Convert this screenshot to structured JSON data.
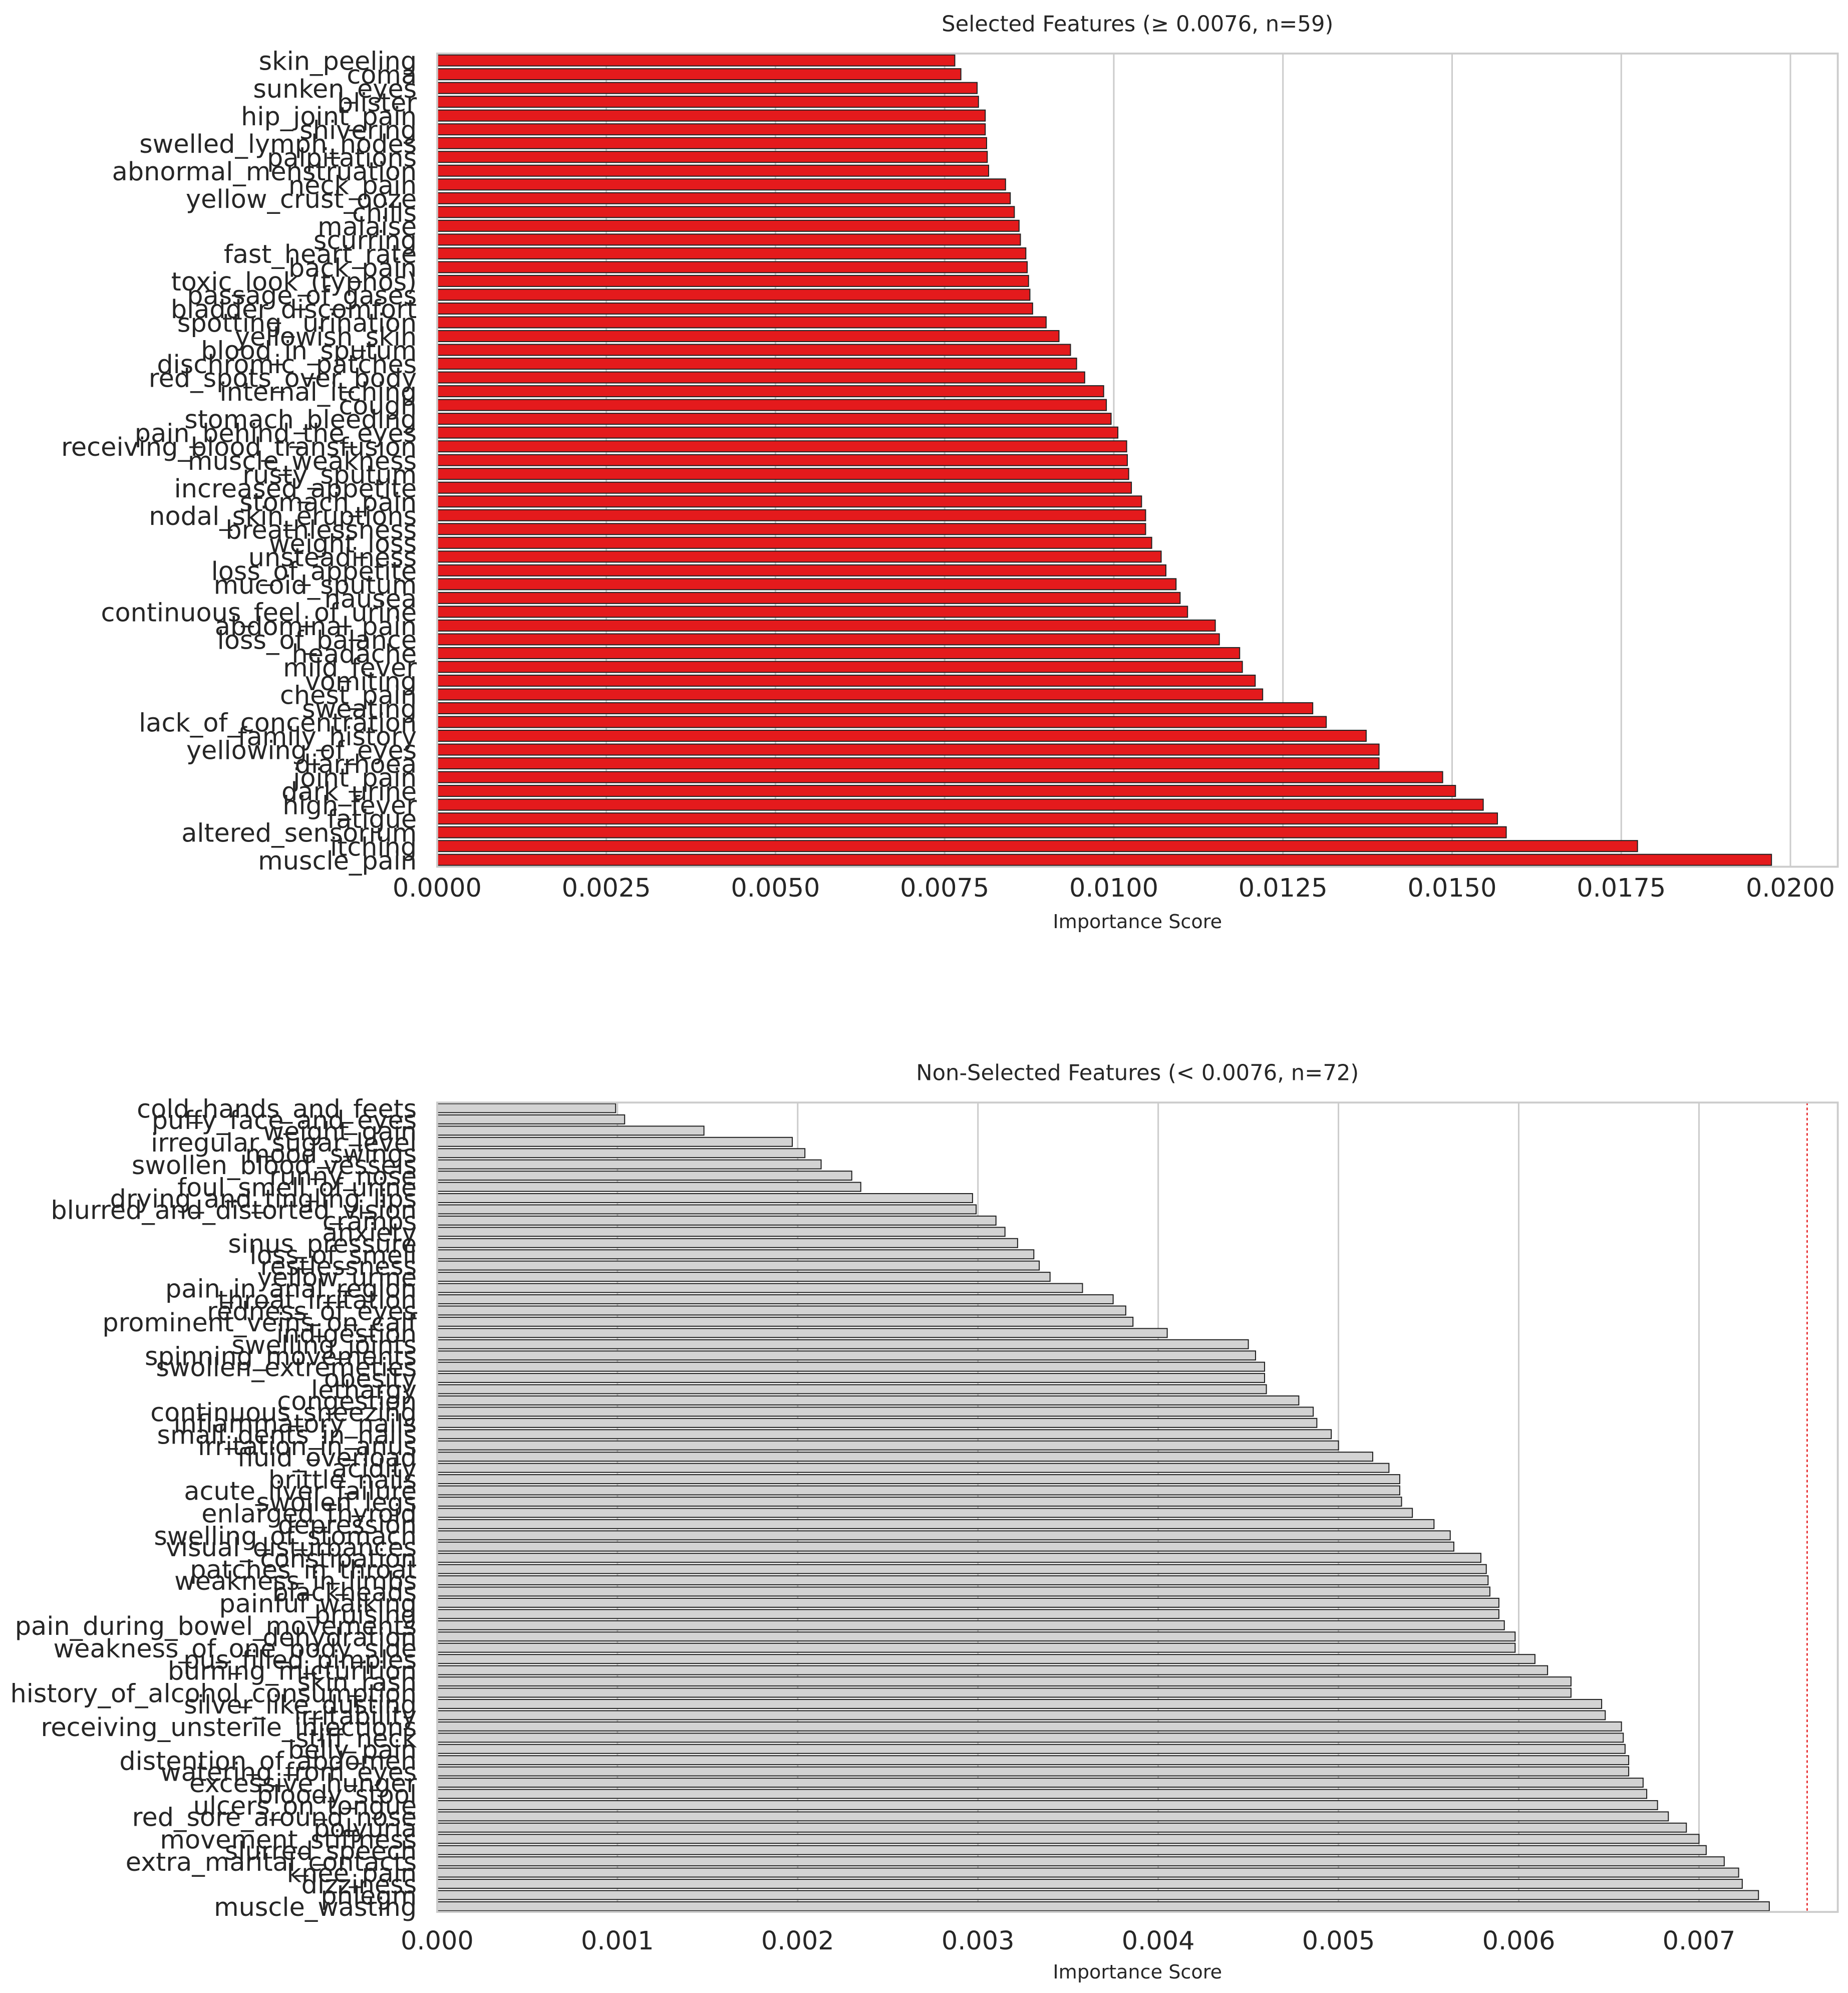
{
  "chart_data": [
    {
      "type": "barh",
      "title": "Selected Features (≥ 0.0076, n=59)",
      "xlabel": "Importance Score",
      "categories": [
        "skin_peeling",
        "coma",
        "sunken_eyes",
        "blister",
        "hip_joint_pain",
        "shivering",
        "swelled_lymph_nodes",
        "palpitations",
        "abnormal_menstruation",
        "neck_pain",
        "yellow_crust_ooze",
        "chills",
        "malaise",
        "scurring",
        "fast_heart_rate",
        "back_pain",
        "toxic_look_(typhos)",
        "passage_of_gases",
        "bladder_discomfort",
        "spotting_ urination",
        "yellowish_skin",
        "blood_in_sputum",
        "dischromic _patches",
        "red_spots_over_body",
        "internal_itching",
        "cough",
        "stomach_bleeding",
        "pain_behind_the_eyes",
        "receiving_blood_transfusion",
        "muscle_weakness",
        "rusty_sputum",
        "increased_appetite",
        "stomach_pain",
        "nodal_skin_eruptions",
        "breathlessness",
        "weight_loss",
        "unsteadiness",
        "loss_of_appetite",
        "mucoid_sputum",
        "nausea",
        "continuous_feel_of_urine",
        "abdominal_pain",
        "loss_of_balance",
        "headache",
        "mild_fever",
        "vomiting",
        "chest_pain",
        "sweating",
        "lack_of_concentration",
        "family_history",
        "yellowing_of_eyes",
        "diarrhoea",
        "joint_pain",
        "dark_urine",
        "high_fever",
        "fatigue",
        "altered_sensorium",
        "itching",
        "muscle_pain"
      ],
      "values": [
        0.00765,
        0.00774,
        0.00798,
        0.008,
        0.0081,
        0.0081,
        0.00812,
        0.00813,
        0.00815,
        0.0084,
        0.00847,
        0.00853,
        0.0086,
        0.00862,
        0.0087,
        0.00872,
        0.00874,
        0.00876,
        0.0088,
        0.009,
        0.00919,
        0.00936,
        0.00945,
        0.00957,
        0.00985,
        0.00989,
        0.00996,
        0.01006,
        0.01019,
        0.0102,
        0.01022,
        0.01026,
        0.01041,
        0.01047,
        0.01047,
        0.01056,
        0.0107,
        0.01077,
        0.01092,
        0.01098,
        0.01109,
        0.0115,
        0.01156,
        0.01186,
        0.0119,
        0.01209,
        0.0122,
        0.01294,
        0.01314,
        0.01373,
        0.01392,
        0.01392,
        0.01486,
        0.01505,
        0.01546,
        0.01567,
        0.0158,
        0.01774,
        0.01972
      ],
      "color": "#e41a1c",
      "edgecolor": "#222222",
      "xlim": [
        0,
        0.0207
      ],
      "xticks": [
        {
          "value": 0,
          "label": "0.0000"
        },
        {
          "value": 0.0025,
          "label": "0.0025"
        },
        {
          "value": 0.005,
          "label": "0.0050"
        },
        {
          "value": 0.0075,
          "label": "0.0075"
        },
        {
          "value": 0.01,
          "label": "0.0100"
        },
        {
          "value": 0.0125,
          "label": "0.0125"
        },
        {
          "value": 0.015,
          "label": "0.0150"
        },
        {
          "value": 0.0175,
          "label": "0.0175"
        },
        {
          "value": 0.02,
          "label": "0.0200"
        }
      ],
      "grid": true
    },
    {
      "type": "barh",
      "title": "Non-Selected Features (< 0.0076, n=72)",
      "xlabel": "Importance Score",
      "categories": [
        "cold_hands_and_feets",
        "puffy_face_and_eyes",
        "weight_gain",
        "irregular_sugar_level",
        "mood_swings",
        "swollen_blood_vessels",
        "runny_nose",
        "foul_smell_of urine",
        "drying_and_tingling_lips",
        "blurred_and_distorted_vision",
        "cramps",
        "anxiety",
        "sinus_pressure",
        "loss_of_smell",
        "restlessness",
        "yellow_urine",
        "pain_in_anal_region",
        "throat_irritation",
        "redness_of_eyes",
        "prominent_veins_on_calf",
        "indigestion",
        "swelling_joints",
        "spinning_movements",
        "swollen_extremeties",
        "obesity",
        "lethargy",
        "congestion",
        "continuous_sneezing",
        "inflammatory_nails",
        "small_dents_in_nails",
        "irritation_in_anus",
        "fluid_overload",
        "acidity",
        "brittle_nails",
        "acute_liver_failure",
        "swollen_legs",
        "enlarged_thyroid",
        "depression",
        "swelling_of_stomach",
        "visual_disturbances",
        "constipation",
        "patches_in_throat",
        "weakness_in_limbs",
        "blackheads",
        "painful_walking",
        "bruising",
        "pain_during_bowel_movements",
        "dehydration",
        "weakness_of_one_body_side",
        "pus_filled_pimples",
        "burning_micturition",
        "skin_rash",
        "history_of_alcohol_consumption",
        "silver_like_dusting",
        "irritability",
        "receiving_unsterile_injections",
        "stiff_neck",
        "belly_pain",
        "distention_of_abdomen",
        "watering_from_eyes",
        "excessive_hunger",
        "bloody_stool",
        "ulcers_on_tongue",
        "red_sore_around_nose",
        "polyuria",
        "movement_stiffness",
        "slurred_speech",
        "extra_marital_contacts",
        "knee_pain",
        "dizziness",
        "phlegm",
        "muscle_wasting"
      ],
      "values": [
        0.00099,
        0.00104,
        0.00148,
        0.00197,
        0.00204,
        0.00213,
        0.0023,
        0.00235,
        0.00297,
        0.00299,
        0.0031,
        0.00315,
        0.00322,
        0.00331,
        0.00334,
        0.0034,
        0.00358,
        0.00375,
        0.00382,
        0.00386,
        0.00405,
        0.0045,
        0.00454,
        0.00459,
        0.00459,
        0.0046,
        0.00478,
        0.00486,
        0.00488,
        0.00496,
        0.005,
        0.00519,
        0.00528,
        0.00534,
        0.00534,
        0.00535,
        0.00541,
        0.00553,
        0.00562,
        0.00564,
        0.00579,
        0.00582,
        0.00583,
        0.00584,
        0.00589,
        0.00589,
        0.00592,
        0.00598,
        0.00598,
        0.00609,
        0.00616,
        0.00629,
        0.00629,
        0.00646,
        0.00648,
        0.00657,
        0.00658,
        0.00659,
        0.00661,
        0.00661,
        0.00669,
        0.00671,
        0.00677,
        0.00683,
        0.00693,
        0.007,
        0.00704,
        0.00714,
        0.00722,
        0.00724,
        0.00733,
        0.00739
      ],
      "color": "#d3d3d3",
      "edgecolor": "#222222",
      "xlim": [
        0,
        0.00777
      ],
      "xticks": [
        {
          "value": 0,
          "label": "0.000"
        },
        {
          "value": 0.001,
          "label": "0.001"
        },
        {
          "value": 0.002,
          "label": "0.002"
        },
        {
          "value": 0.003,
          "label": "0.003"
        },
        {
          "value": 0.004,
          "label": "0.004"
        },
        {
          "value": 0.005,
          "label": "0.005"
        },
        {
          "value": 0.006,
          "label": "0.006"
        },
        {
          "value": 0.007,
          "label": "0.007"
        }
      ],
      "grid": true,
      "threshold": 0.0076,
      "threshold_color": "#e41a1c"
    }
  ]
}
